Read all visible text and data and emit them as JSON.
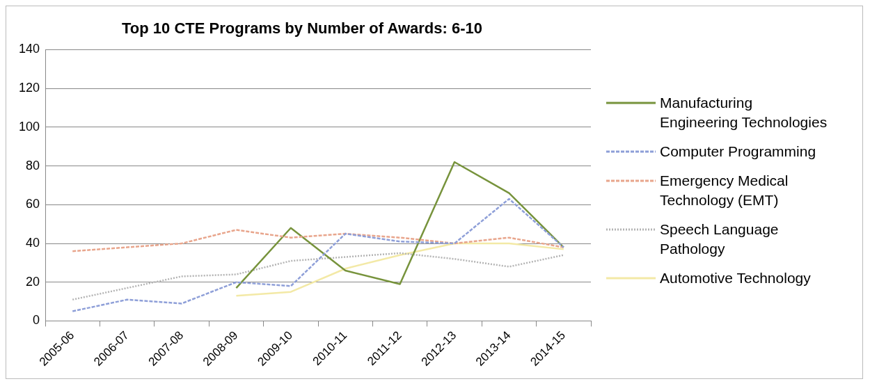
{
  "chart_data": {
    "type": "line",
    "title": "Top 10 CTE Programs by Number of Awards: 6-10",
    "categories": [
      "2005-06",
      "2006-07",
      "2007-08",
      "2008-09",
      "2009-10",
      "2010-11",
      "2011-12",
      "2012-13",
      "2013-14",
      "2014-15"
    ],
    "series": [
      {
        "name": "Manufacturing Engineering Technologies",
        "color": "#77933c",
        "line_style": "solid",
        "values": [
          null,
          null,
          null,
          17,
          48,
          26,
          19,
          82,
          66,
          38
        ]
      },
      {
        "name": "Computer Programming",
        "color": "#8e9fd8",
        "line_style": "dashed",
        "values": [
          5,
          11,
          9,
          20,
          18,
          45,
          41,
          40,
          63,
          38
        ]
      },
      {
        "name": "Emergency Medical Technology (EMT)",
        "color": "#e8a58c",
        "line_style": "dashed",
        "values": [
          36,
          38,
          40,
          47,
          43,
          45,
          43,
          40,
          43,
          38
        ]
      },
      {
        "name": "Speech Language Pathology",
        "color": "#b4b4b4",
        "line_style": "dotted",
        "values": [
          11,
          17,
          23,
          24,
          31,
          33,
          35,
          32,
          28,
          34
        ]
      },
      {
        "name": "Automotive Technology",
        "color": "#f3e9a6",
        "line_style": "solid",
        "values": [
          null,
          null,
          null,
          13,
          15,
          27,
          34,
          40,
          40,
          37
        ]
      }
    ],
    "ylim": [
      0,
      140
    ],
    "yticks": [
      0,
      20,
      40,
      60,
      80,
      100,
      120,
      140
    ],
    "grid": "y",
    "legend": "right",
    "marker": "none"
  }
}
